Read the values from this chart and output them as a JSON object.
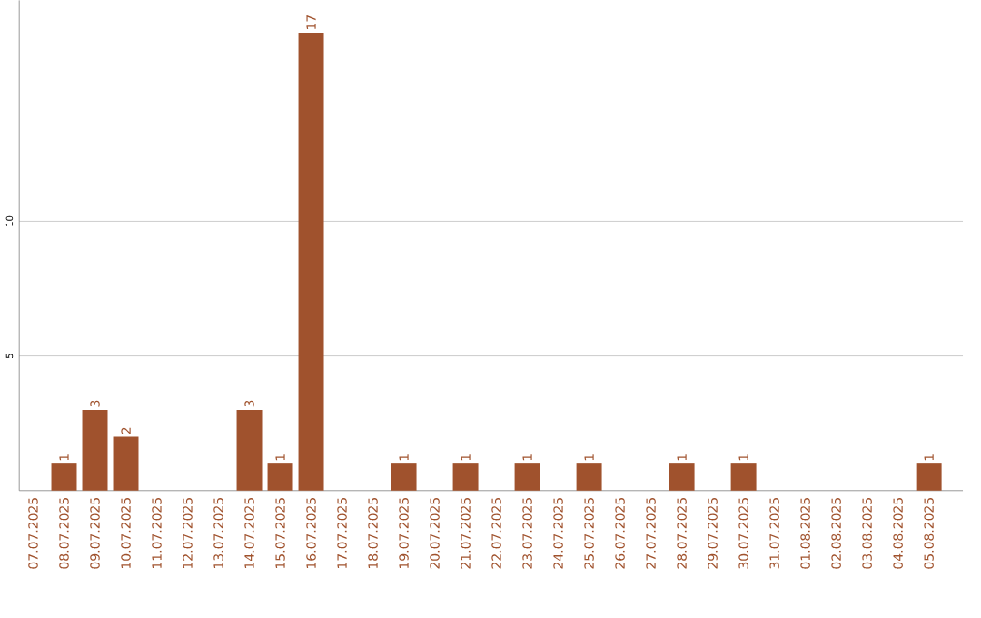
{
  "chart_data": {
    "type": "bar",
    "categories": [
      "07.07.2025",
      "08.07.2025",
      "09.07.2025",
      "10.07.2025",
      "11.07.2025",
      "12.07.2025",
      "13.07.2025",
      "14.07.2025",
      "15.07.2025",
      "16.07.2025",
      "17.07.2025",
      "18.07.2025",
      "19.07.2025",
      "20.07.2025",
      "21.07.2025",
      "22.07.2025",
      "23.07.2025",
      "24.07.2025",
      "25.07.2025",
      "26.07.2025",
      "27.07.2025",
      "28.07.2025",
      "29.07.2025",
      "30.07.2025",
      "31.07.2025",
      "01.08.2025",
      "02.08.2025",
      "03.08.2025",
      "04.08.2025",
      "05.08.2025"
    ],
    "values": [
      0,
      1,
      3,
      2,
      0,
      0,
      0,
      3,
      1,
      17,
      0,
      0,
      1,
      0,
      1,
      0,
      1,
      0,
      1,
      0,
      0,
      1,
      0,
      1,
      0,
      0,
      0,
      0,
      0,
      1
    ],
    "value_labels": [
      null,
      "1",
      "3",
      "2",
      null,
      null,
      null,
      "3",
      "1",
      "17",
      null,
      null,
      "1",
      null,
      "1",
      null,
      "1",
      null,
      "1",
      null,
      null,
      "1",
      null,
      "1",
      null,
      null,
      null,
      null,
      null,
      "1"
    ],
    "color": "#a0522d",
    "ylim": [
      0,
      18.2
    ],
    "yticks": [
      5,
      10
    ],
    "grid": "y"
  }
}
